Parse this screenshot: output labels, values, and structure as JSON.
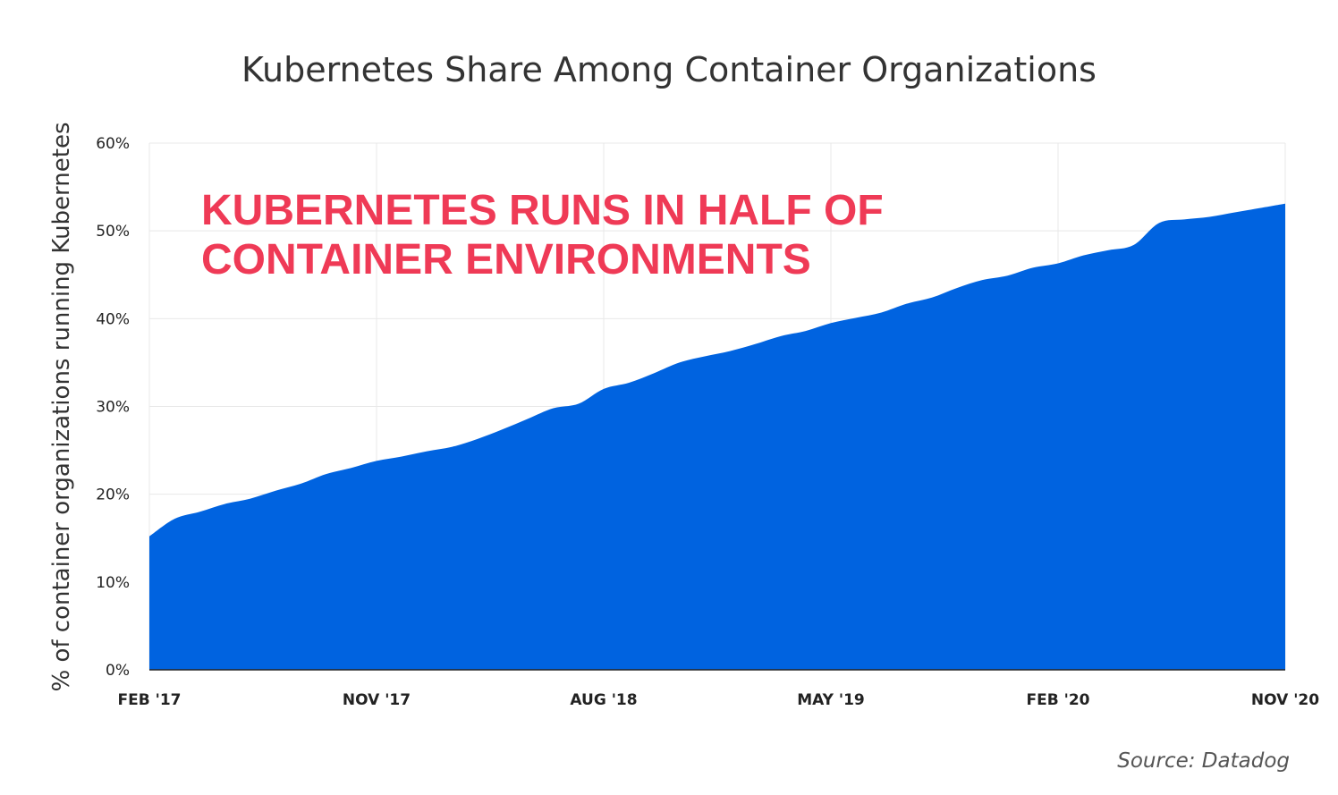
{
  "chart_data": {
    "type": "area",
    "title": "Kubernetes Share Among Container Organizations",
    "ylabel": "% of container organizations running Kubernetes",
    "xlabel": "",
    "x_ticks": [
      "FEB '17",
      "NOV '17",
      "AUG '18",
      "MAY '19",
      "FEB '20",
      "NOV '20"
    ],
    "y_ticks": [
      "0%",
      "10%",
      "20%",
      "30%",
      "40%",
      "50%",
      "60%"
    ],
    "ylim": [
      0,
      60
    ],
    "grid": true,
    "color": "#0063e0",
    "annotation": [
      "KUBERNETES RUNS IN HALF OF",
      "CONTAINER ENVIRONMENTS"
    ],
    "annotation_color": "#ef3a56",
    "source": "Source: Datadog",
    "series": [
      {
        "x": [
          "2017-02",
          "2017-03",
          "2017-04",
          "2017-05",
          "2017-06",
          "2017-07",
          "2017-08",
          "2017-09",
          "2017-10",
          "2017-11",
          "2017-12",
          "2018-01",
          "2018-02",
          "2018-03",
          "2018-04",
          "2018-05",
          "2018-06",
          "2018-07",
          "2018-08",
          "2018-09",
          "2018-10",
          "2018-11",
          "2018-12",
          "2019-01",
          "2019-02",
          "2019-03",
          "2019-04",
          "2019-05",
          "2019-06",
          "2019-07",
          "2019-08",
          "2019-09",
          "2019-10",
          "2019-11",
          "2019-12",
          "2020-01",
          "2020-02",
          "2020-03",
          "2020-04",
          "2020-05",
          "2020-06",
          "2020-07",
          "2020-08",
          "2020-09",
          "2020-10",
          "2020-11"
        ],
        "values": [
          15.2,
          17.2,
          18.0,
          18.9,
          19.5,
          20.4,
          21.2,
          22.3,
          23.0,
          23.8,
          24.3,
          24.9,
          25.4,
          26.3,
          27.4,
          28.6,
          29.8,
          30.3,
          32.0,
          32.7,
          33.8,
          35.0,
          35.7,
          36.3,
          37.1,
          38.0,
          38.6,
          39.5,
          40.1,
          40.7,
          41.7,
          42.4,
          43.5,
          44.4,
          44.9,
          45.8,
          46.3,
          47.2,
          47.8,
          48.4,
          50.9,
          51.3,
          51.6,
          52.1,
          52.6,
          53.1
        ]
      }
    ]
  }
}
